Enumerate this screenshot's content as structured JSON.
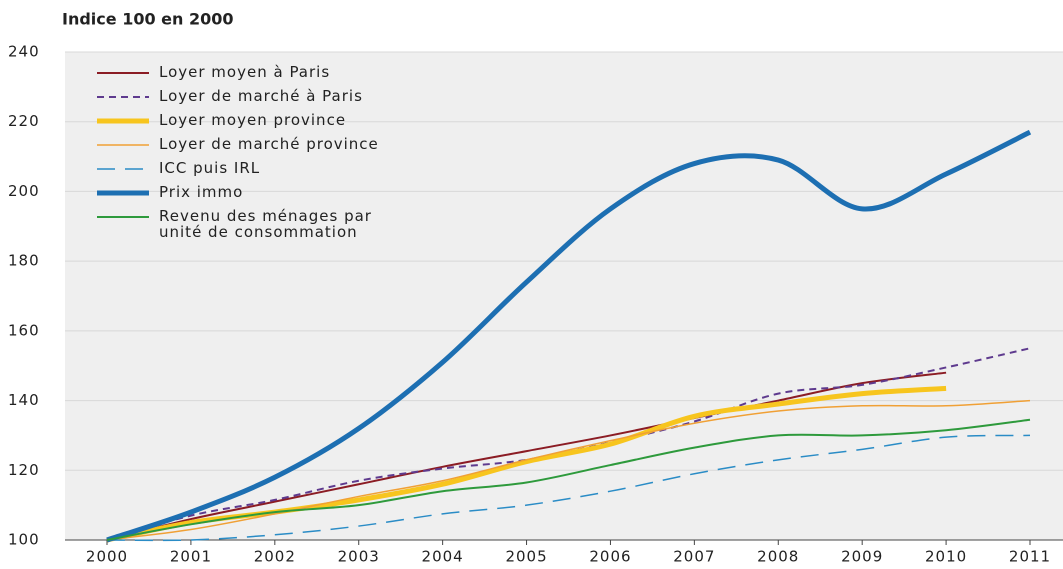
{
  "chart_data": {
    "type": "line",
    "title": "Indice 100 en 2000",
    "x": [
      2000,
      2001,
      2002,
      2003,
      2004,
      2005,
      2006,
      2007,
      2008,
      2009,
      2010,
      2011
    ],
    "xlim": [
      2000,
      2011
    ],
    "xticks": [
      2000,
      2001,
      2002,
      2003,
      2004,
      2005,
      2006,
      2007,
      2008,
      2009,
      2010,
      2011
    ],
    "ylim": [
      100,
      240
    ],
    "yticks": [
      100,
      120,
      140,
      160,
      180,
      200,
      220,
      240
    ],
    "grid": true,
    "legend": "upper left",
    "series": [
      {
        "name": "Loyer moyen à Paris",
        "color": "#8b1c24",
        "width": 2,
        "dash": "solid",
        "values": [
          100,
          106,
          111,
          116,
          121,
          125.5,
          130,
          135,
          140,
          145,
          148,
          null
        ]
      },
      {
        "name": "Loyer de marché à Paris",
        "color": "#5e3a8e",
        "width": 2,
        "dash": "dashed",
        "values": [
          100,
          107,
          111.5,
          117,
          120.5,
          123,
          128,
          134,
          142,
          144.5,
          149.5,
          155
        ]
      },
      {
        "name": "Loyer moyen province",
        "color": "#f7c51e",
        "width": 5,
        "dash": "solid",
        "values": [
          100,
          105,
          108,
          111.5,
          116,
          122.5,
          127.5,
          135.5,
          139,
          142,
          143.5,
          null
        ]
      },
      {
        "name": "Loyer de marché province",
        "color": "#f0a035",
        "width": 1.5,
        "dash": "solid",
        "values": [
          100,
          103,
          107.5,
          112.5,
          117,
          123,
          128.5,
          133.5,
          137,
          138.5,
          138.5,
          140
        ]
      },
      {
        "name": "ICC puis IRL",
        "color": "#2a8cc6",
        "width": 1.5,
        "dash": "longdash",
        "values": [
          100,
          100,
          101.5,
          104,
          107.5,
          110,
          114,
          119,
          123,
          126,
          129.5,
          130
        ]
      },
      {
        "name": "Prix immo",
        "color": "#1d6fb2",
        "width": 5,
        "dash": "solid",
        "values": [
          100,
          108,
          118,
          132,
          151,
          174,
          195,
          208,
          209,
          195,
          205,
          217
        ]
      },
      {
        "name": "Revenu des ménages par unité de consommation",
        "color": "#2e9a3c",
        "width": 2,
        "dash": "solid",
        "values": [
          100,
          104.5,
          108,
          110,
          114,
          116.5,
          121.5,
          126.5,
          130,
          130,
          131.5,
          134.5
        ]
      }
    ]
  }
}
